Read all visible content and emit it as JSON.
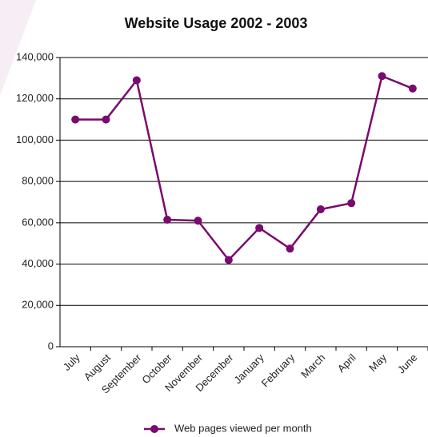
{
  "chart_data": {
    "type": "line",
    "title": "Website Usage 2002 - 2003",
    "categories": [
      "July",
      "August",
      "September",
      "October",
      "November",
      "December",
      "January",
      "February",
      "March",
      "April",
      "May",
      "June"
    ],
    "series": [
      {
        "name": "Web pages viewed per month",
        "color": "#7a0a6e",
        "values": [
          110000,
          110000,
          129000,
          61500,
          61000,
          42000,
          57500,
          47500,
          66500,
          69500,
          131000,
          125000
        ]
      }
    ],
    "ylim": [
      0,
      140000
    ],
    "yticks": [
      0,
      {
        "value": 20000,
        "label": "20,000"
      },
      {
        "value": 40000,
        "label": "40,000"
      },
      {
        "value": 60000,
        "label": "60,000"
      },
      {
        "value": 80000,
        "label": "80,000"
      },
      {
        "value": 100000,
        "label": "100,000"
      },
      {
        "value": 120000,
        "label": "120,000"
      },
      {
        "value": 140000,
        "label": "140,000"
      }
    ],
    "grid": true
  }
}
